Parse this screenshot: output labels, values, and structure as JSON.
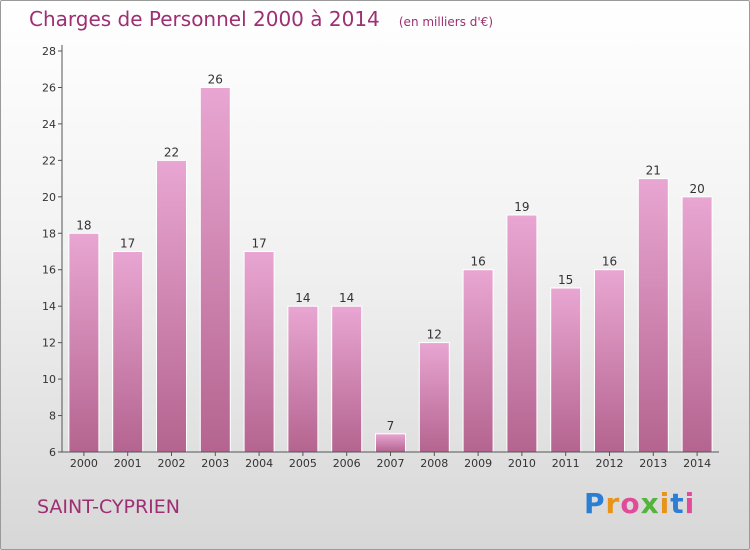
{
  "header": {
    "title": "Charges de Personnel 2000 à 2014",
    "subtitle": "(en milliers d'€)"
  },
  "footer": {
    "commune": "SAINT-CYPRIEN",
    "brand": "Proxiti"
  },
  "colors": {
    "bar_top": "#e9a6d2",
    "bar_bottom": "#b4648f",
    "text_accent": "#9d2f72"
  },
  "chart_data": {
    "type": "bar",
    "title": "Charges de Personnel 2000 à 2014",
    "subtitle": "(en milliers d'€)",
    "xlabel": "",
    "ylabel": "",
    "categories": [
      "2000",
      "2001",
      "2002",
      "2003",
      "2004",
      "2005",
      "2006",
      "2007",
      "2008",
      "2009",
      "2010",
      "2011",
      "2012",
      "2013",
      "2014"
    ],
    "values": [
      18,
      17,
      22,
      26,
      17,
      14,
      14,
      7,
      12,
      16,
      19,
      15,
      16,
      21,
      20
    ],
    "ylim": [
      6,
      28
    ],
    "yticks": [
      6,
      8,
      10,
      12,
      14,
      16,
      18,
      20,
      22,
      24,
      26,
      28
    ],
    "grid": false,
    "data_labels": true
  }
}
